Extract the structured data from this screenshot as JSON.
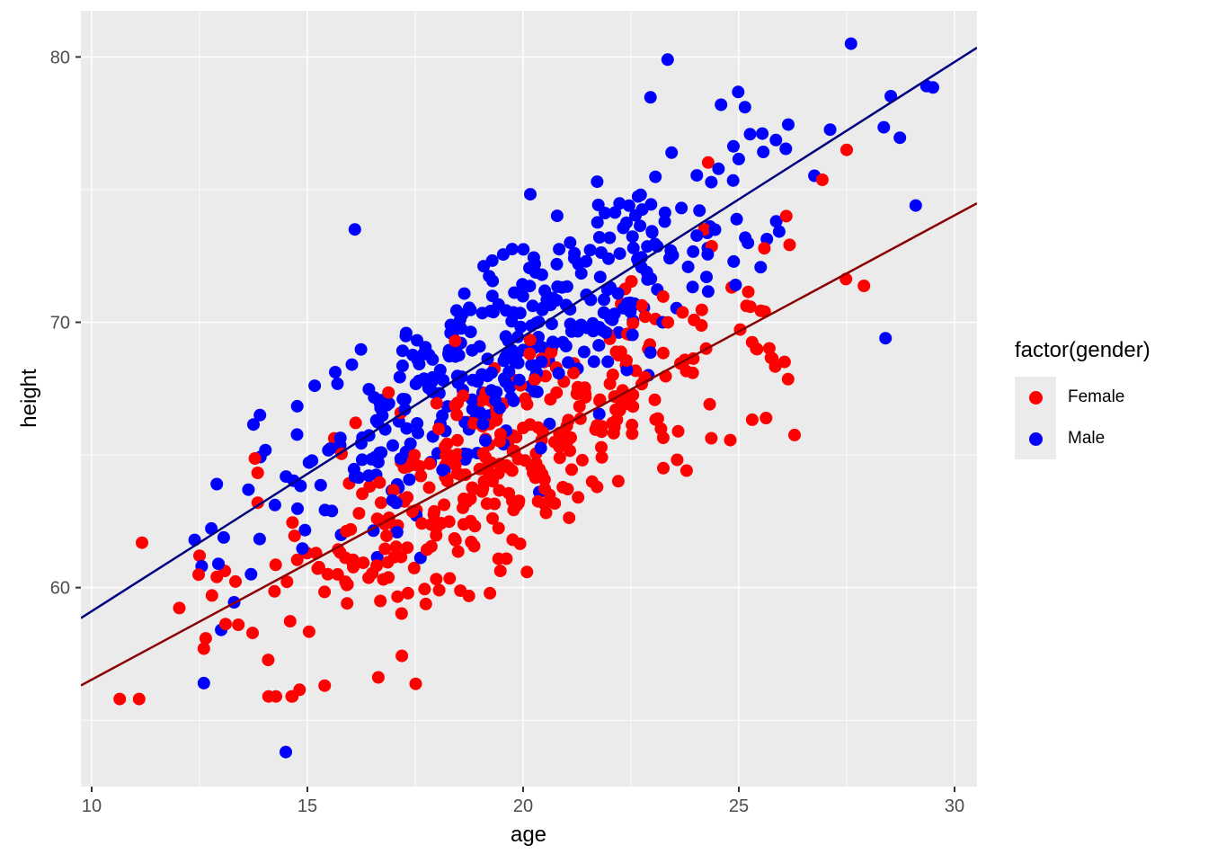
{
  "chart_data": {
    "type": "scatter",
    "title": "",
    "xlabel": "age",
    "ylabel": "height",
    "x_ticks": [
      10,
      15,
      20,
      25,
      30
    ],
    "y_ticks": [
      60,
      70,
      80
    ],
    "x_minor_ticks": [
      12.5,
      17.5,
      22.5,
      27.5
    ],
    "y_minor_ticks": [
      55,
      65,
      75
    ],
    "xlim": [
      9.75,
      30.52
    ],
    "ylim": [
      52.5,
      81.74
    ],
    "grid": {
      "major_color": "#FFFFFF",
      "minor_color": "#FFFFFF",
      "panel_bg": "#EBEBEB"
    },
    "axis": {
      "tick_color": "#333333",
      "tick_label_color": "#4D4D4D"
    },
    "point_radius": 7,
    "legend": {
      "title": "factor(gender)",
      "position": "right",
      "key_bg": "#EBEBEB",
      "items": [
        {
          "label": "Female",
          "color": "#FF0000"
        },
        {
          "label": "Male",
          "color": "#0000FF"
        }
      ]
    },
    "series": [
      {
        "name": "Female",
        "color": "#FF0000",
        "n": 380,
        "seed": 12345,
        "age_mean": 19.35,
        "age_sd": 3.15,
        "age_min": 10.4,
        "age_max": 27.9,
        "resid_sd": 2.1,
        "h_min": 55.9,
        "h_max": 77.2,
        "trend": {
          "slope": 0.875,
          "intercept": 47.78,
          "color": "#8B0000"
        }
      },
      {
        "name": "Male",
        "color": "#0000FF",
        "n": 395,
        "seed": 54321,
        "age_mean": 19.95,
        "age_sd": 2.95,
        "age_min": 12.2,
        "age_max": 29.5,
        "resid_sd": 1.95,
        "h_min": 57.0,
        "h_max": 80.6,
        "trend": {
          "slope": 1.035,
          "intercept": 48.76,
          "color": "#000080"
        }
      }
    ],
    "regression_lines": [
      {
        "series": "Female",
        "slope": 0.875,
        "intercept": 47.78,
        "color": "#8B0000"
      },
      {
        "series": "Male",
        "slope": 1.035,
        "intercept": 48.76,
        "color": "#000080"
      }
    ],
    "notable_points": [
      {
        "age": 10.65,
        "height": 55.8,
        "gender": "Female"
      },
      {
        "age": 11.1,
        "height": 55.8,
        "gender": "Female"
      },
      {
        "age": 12.6,
        "height": 57.7,
        "gender": "Female"
      },
      {
        "age": 13.4,
        "height": 58.6,
        "gender": "Female"
      },
      {
        "age": 12.9,
        "height": 60.4,
        "gender": "Female"
      },
      {
        "age": 13.85,
        "height": 63.2,
        "gender": "Female"
      },
      {
        "age": 14.1,
        "height": 55.9,
        "gender": "Female"
      },
      {
        "age": 15.2,
        "height": 61.3,
        "gender": "Female"
      },
      {
        "age": 12.5,
        "height": 61.2,
        "gender": "Female"
      },
      {
        "age": 24.2,
        "height": 73.5,
        "gender": "Female"
      },
      {
        "age": 25.6,
        "height": 70.4,
        "gender": "Female"
      },
      {
        "age": 26.1,
        "height": 74.0,
        "gender": "Female"
      },
      {
        "age": 27.5,
        "height": 76.5,
        "gender": "Female"
      },
      {
        "age": 14.5,
        "height": 53.8,
        "gender": "Male"
      },
      {
        "age": 12.6,
        "height": 56.4,
        "gender": "Male"
      },
      {
        "age": 12.55,
        "height": 60.8,
        "gender": "Male"
      },
      {
        "age": 12.9,
        "height": 63.9,
        "gender": "Male"
      },
      {
        "age": 13.9,
        "height": 66.5,
        "gender": "Male"
      },
      {
        "age": 16.1,
        "height": 73.5,
        "gender": "Male"
      },
      {
        "age": 23.35,
        "height": 79.9,
        "gender": "Male"
      },
      {
        "age": 27.6,
        "height": 80.5,
        "gender": "Male"
      },
      {
        "age": 29.35,
        "height": 78.9,
        "gender": "Male"
      },
      {
        "age": 29.5,
        "height": 78.85,
        "gender": "Male"
      },
      {
        "age": 28.4,
        "height": 69.4,
        "gender": "Male"
      },
      {
        "age": 29.1,
        "height": 74.4,
        "gender": "Male"
      }
    ]
  }
}
